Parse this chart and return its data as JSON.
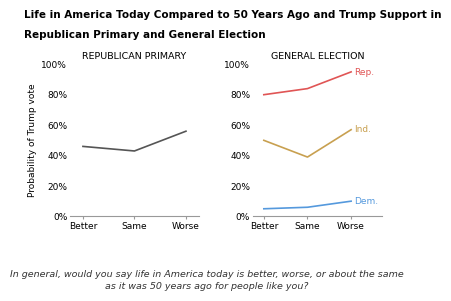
{
  "title_line1": "Life in America Today Compared to 50 Years Ago and Trump Support in",
  "title_line2": "Republican Primary and General Election",
  "footnote": "In general, would you say life in America today is better, worse, or about the same\nas it was 50 years ago for people like you?",
  "categories": [
    "Better",
    "Same",
    "Worse"
  ],
  "primary": {
    "label": "REPUBLICAN PRIMARY",
    "single_line": [
      0.46,
      0.43,
      0.56
    ],
    "line_color": "#555555"
  },
  "general": {
    "label": "GENERAL ELECTION",
    "rep": {
      "values": [
        0.8,
        0.84,
        0.95
      ],
      "color": "#e05555",
      "label": "Rep."
    },
    "ind": {
      "values": [
        0.5,
        0.39,
        0.57
      ],
      "color": "#c8a050",
      "label": "Ind."
    },
    "dem": {
      "values": [
        0.05,
        0.06,
        0.1
      ],
      "color": "#5599dd",
      "label": "Dem."
    }
  },
  "ylabel": "Probability of Trump vote",
  "ylim": [
    0,
    1.0
  ],
  "yticks": [
    0,
    0.2,
    0.4,
    0.6,
    0.8,
    1.0
  ],
  "ytick_labels": [
    "0%",
    "20%",
    "40%",
    "60%",
    "80%",
    "100%"
  ],
  "background_color": "#ffffff",
  "title_fontsize": 7.5,
  "footnote_fontsize": 6.8,
  "axis_title_fontsize": 6.8,
  "tick_fontsize": 6.5,
  "ylabel_fontsize": 6.5
}
